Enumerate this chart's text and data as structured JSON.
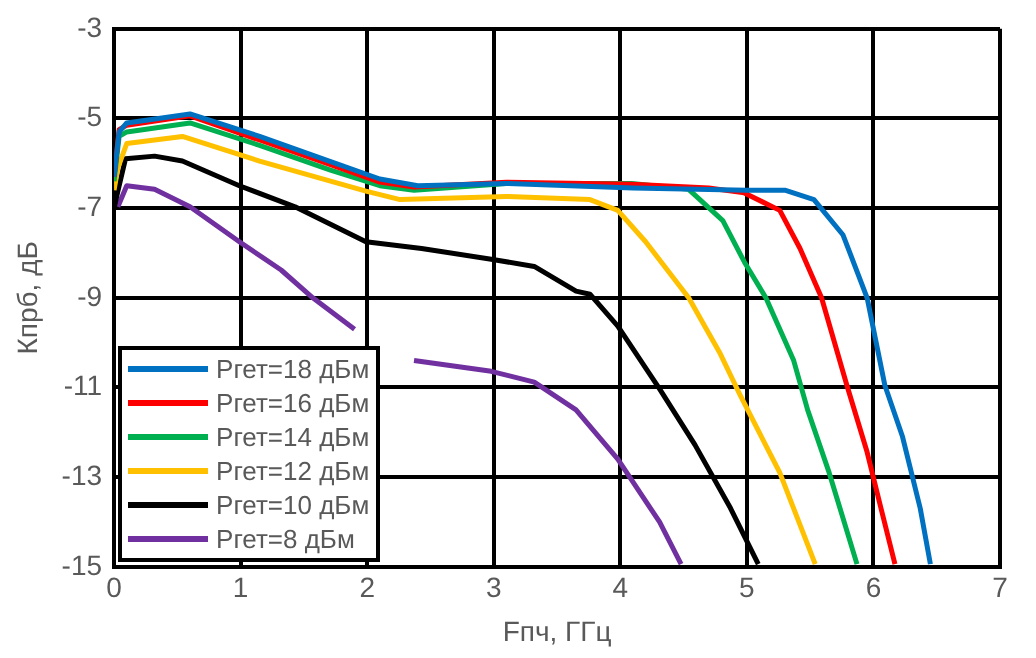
{
  "chart_data": {
    "type": "line",
    "xlabel": "Fпч, ГГц",
    "ylabel": "Кпрб, дБ",
    "xlim": [
      0,
      7
    ],
    "xticks": [
      0,
      1,
      2,
      3,
      4,
      5,
      6,
      7
    ],
    "ylim": [
      -15,
      -3
    ],
    "yticks": [
      -15,
      -13,
      -11,
      -9,
      -7,
      -5,
      -3
    ],
    "grid": true,
    "legend": "bottom left",
    "marker": "none",
    "line_style": "solid",
    "series": [
      {
        "name": "Ргет=18 дБм",
        "color": "#0070c0",
        "x": [
          0.0,
          0.04,
          0.1,
          0.6,
          1.15,
          1.7,
          2.1,
          2.4,
          3.1,
          4.1,
          5.0,
          5.3,
          5.53,
          5.76,
          5.95,
          6.09,
          6.23,
          6.37,
          6.45
        ],
        "values": [
          -6.3,
          -5.3,
          -5.1,
          -4.9,
          -5.4,
          -5.95,
          -6.35,
          -6.5,
          -6.45,
          -6.55,
          -6.6,
          -6.6,
          -6.81,
          -7.6,
          -9.0,
          -10.95,
          -12.1,
          -13.7,
          -14.94
        ]
      },
      {
        "name": "Ргет=16 дБм",
        "color": "#ff0000",
        "x": [
          0.0,
          0.04,
          0.1,
          0.6,
          1.15,
          1.71,
          2.1,
          2.37,
          3.1,
          4.09,
          4.7,
          4.98,
          5.26,
          5.42,
          5.59,
          5.79,
          5.95,
          6.06,
          6.17
        ],
        "values": [
          -6.3,
          -5.25,
          -5.15,
          -4.94,
          -5.48,
          -6.03,
          -6.42,
          -6.53,
          -6.42,
          -6.47,
          -6.55,
          -6.66,
          -7.05,
          -7.9,
          -9.0,
          -10.95,
          -12.44,
          -13.7,
          -14.94
        ]
      },
      {
        "name": "Ргет=14 дБм",
        "color": "#00b050",
        "x": [
          0.0,
          0.04,
          0.1,
          0.6,
          1.15,
          1.71,
          2.1,
          2.37,
          3.1,
          4.09,
          4.54,
          4.81,
          4.98,
          5.15,
          5.37,
          5.48,
          5.65,
          5.87
        ],
        "values": [
          -6.4,
          -5.4,
          -5.3,
          -5.1,
          -5.6,
          -6.15,
          -6.5,
          -6.6,
          -6.45,
          -6.45,
          -6.58,
          -7.28,
          -8.2,
          -9.0,
          -10.4,
          -11.5,
          -12.9,
          -14.94
        ]
      },
      {
        "name": "Ргет=12 дБм",
        "color": "#ffc000",
        "x": [
          0.0,
          0.03,
          0.1,
          0.54,
          1.15,
          1.99,
          2.26,
          3.1,
          3.76,
          3.98,
          4.2,
          4.54,
          4.79,
          4.95,
          5.26,
          5.54
        ],
        "values": [
          -6.6,
          -6.1,
          -5.56,
          -5.4,
          -5.95,
          -6.62,
          -6.81,
          -6.74,
          -6.81,
          -7.05,
          -7.75,
          -9.0,
          -10.25,
          -11.19,
          -12.9,
          -14.94
        ]
      },
      {
        "name": "Ргет=10 дБм",
        "color": "#000000",
        "x": [
          0.0,
          0.03,
          0.09,
          0.32,
          0.54,
          0.99,
          1.43,
          1.99,
          2.43,
          2.98,
          3.32,
          3.65,
          3.76,
          3.98,
          4.31,
          4.59,
          4.87,
          5.09
        ],
        "values": [
          -7.0,
          -6.62,
          -5.9,
          -5.84,
          -5.95,
          -6.5,
          -6.97,
          -7.75,
          -7.9,
          -8.14,
          -8.3,
          -8.85,
          -8.92,
          -9.63,
          -11.03,
          -12.28,
          -13.69,
          -14.94
        ]
      },
      {
        "name": "Ргет=8 дБм",
        "color": "#7030a0",
        "x": [
          0.03,
          0.1,
          0.32,
          0.6,
          0.99,
          1.32,
          1.57,
          1.9,
          2.1,
          2.37,
          2.98,
          3.32,
          3.65,
          3.98,
          4.31,
          4.48
        ],
        "values": [
          -6.97,
          -6.5,
          -6.58,
          -6.97,
          -7.75,
          -8.38,
          -9.0,
          -9.7,
          null,
          -10.4,
          -10.64,
          -10.88,
          -11.5,
          -12.6,
          -14.0,
          -14.94
        ]
      }
    ]
  }
}
